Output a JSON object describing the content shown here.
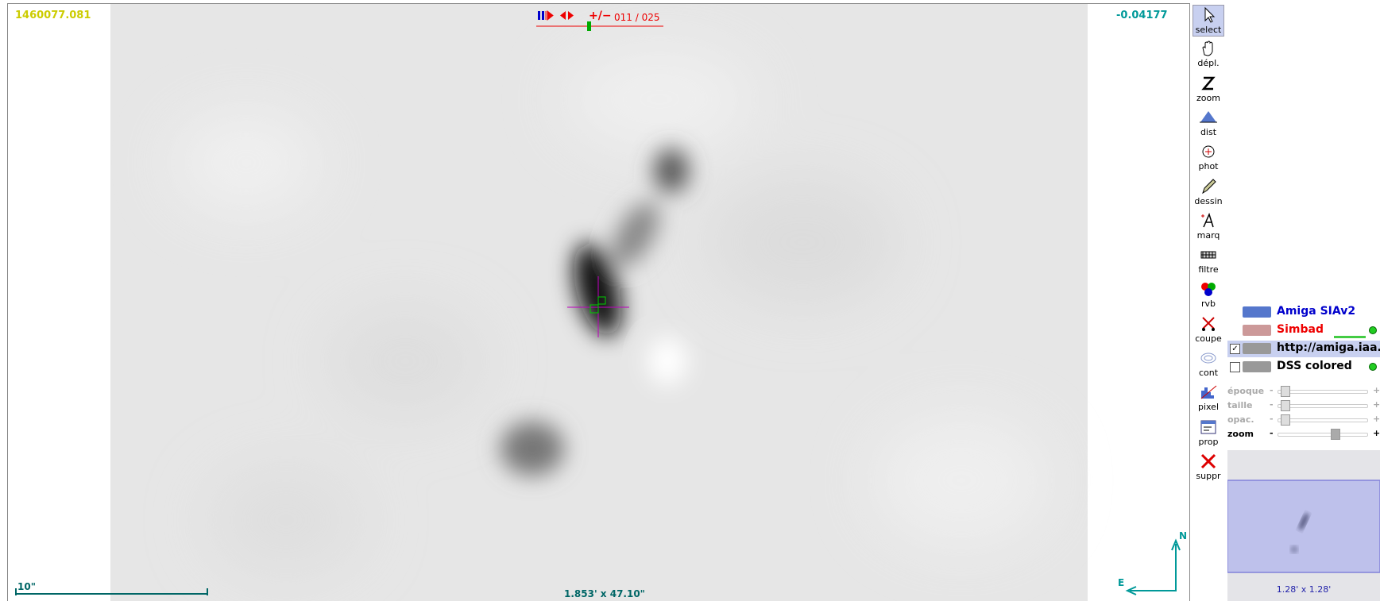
{
  "view": {
    "coord_value": "1460077.081",
    "pixel_value": "-0.04177",
    "frame": "011 / 025",
    "plus_minus": "+/−",
    "scale": "10\"",
    "field_of_view": "1.853' x 47.10\"",
    "north": "N",
    "east": "E"
  },
  "tools": [
    "select",
    "dépl.",
    "zoom",
    "dist",
    "phot",
    "dessin",
    "marq",
    "filtre",
    "rvb",
    "coupe",
    "cont",
    "pixel",
    "prop",
    "suppr"
  ],
  "layers": [
    "Amiga SIAv2",
    "Simbad",
    "http://amiga.iaa.es:",
    "DSS colored"
  ],
  "sliders": [
    "époque",
    "taille",
    "opac.",
    "zoom"
  ],
  "slider_minus": "-",
  "slider_plus": "+",
  "thumbnail": {
    "label": "1.28' x 1.28'"
  }
}
